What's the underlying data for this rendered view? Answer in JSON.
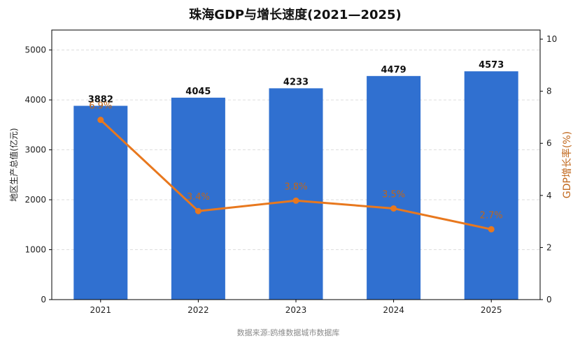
{
  "chart_data": {
    "type": "bar+line",
    "title": "珠海GDP与增长速度(2021—2025)",
    "categories": [
      "2021",
      "2022",
      "2023",
      "2024",
      "2025"
    ],
    "series": [
      {
        "name": "",
        "type": "bar",
        "axis": "left",
        "values": [
          3882,
          4045,
          4233,
          4479,
          4573
        ],
        "labels": [
          "3882",
          "4045",
          "4233",
          "4479",
          "4573"
        ],
        "color": "#3070d0"
      },
      {
        "name": "",
        "type": "line",
        "axis": "right",
        "values": [
          6.9,
          3.4,
          3.8,
          3.5,
          2.7
        ],
        "labels": [
          "6.9%",
          "3.4%",
          "3.8%",
          "3.5%",
          "2.7%"
        ],
        "color": "#e8781e"
      }
    ],
    "ylabel": "地区生产总值(亿元)",
    "y2label": "GDP增长率(%)",
    "ylim": [
      0,
      5400
    ],
    "yticks": [
      "0",
      "1000",
      "2000",
      "3000",
      "4000",
      "5000"
    ],
    "y2lim": [
      0,
      10.35
    ],
    "y2ticks": [
      "0",
      "2",
      "4",
      "6",
      "8",
      "10"
    ],
    "grid": true,
    "source": "数据来源:鸥维数据城市数据库"
  }
}
